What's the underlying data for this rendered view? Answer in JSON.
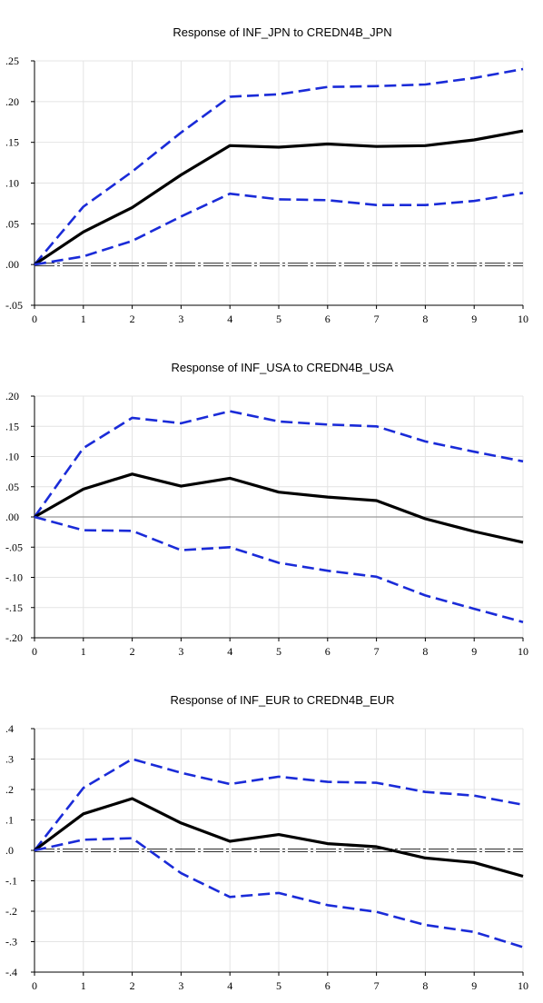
{
  "chart_data": [
    {
      "type": "line",
      "title": "Response of INF_JPN to CREDN4B_JPN",
      "x": [
        0,
        1,
        2,
        3,
        4,
        5,
        6,
        7,
        8,
        9,
        10
      ],
      "ylim": [
        -0.05,
        0.25
      ],
      "yticks": [
        -0.05,
        0.0,
        0.05,
        0.1,
        0.15,
        0.2,
        0.25
      ],
      "ytick_labels": [
        "-.05",
        ".00",
        ".05",
        ".10",
        ".15",
        ".20",
        ".25"
      ],
      "baseline": "double-dashed",
      "series": [
        {
          "role": "upper",
          "color": "#1a2bd8",
          "style": "dashed",
          "values": [
            0.0,
            0.071,
            0.114,
            0.162,
            0.206,
            0.209,
            0.218,
            0.219,
            0.221,
            0.229,
            0.24
          ]
        },
        {
          "role": "response",
          "color": "#000000",
          "style": "solid",
          "values": [
            0.0,
            0.04,
            0.07,
            0.11,
            0.146,
            0.144,
            0.148,
            0.145,
            0.146,
            0.153,
            0.164
          ]
        },
        {
          "role": "lower",
          "color": "#1a2bd8",
          "style": "dashed",
          "values": [
            0.0,
            0.01,
            0.029,
            0.059,
            0.087,
            0.08,
            0.079,
            0.073,
            0.073,
            0.078,
            0.088
          ]
        }
      ]
    },
    {
      "type": "line",
      "title": "Response of INF_USA to CREDN4B_USA",
      "x": [
        0,
        1,
        2,
        3,
        4,
        5,
        6,
        7,
        8,
        9,
        10
      ],
      "ylim": [
        -0.2,
        0.2
      ],
      "yticks": [
        -0.2,
        -0.15,
        -0.1,
        -0.05,
        0.0,
        0.05,
        0.1,
        0.15,
        0.2
      ],
      "ytick_labels": [
        "-.20",
        "-.15",
        "-.10",
        "-.05",
        ".00",
        ".05",
        ".10",
        ".15",
        ".20"
      ],
      "baseline": "single",
      "series": [
        {
          "role": "upper",
          "color": "#1a2bd8",
          "style": "dashed",
          "values": [
            0.0,
            0.114,
            0.164,
            0.155,
            0.175,
            0.158,
            0.153,
            0.15,
            0.125,
            0.108,
            0.092
          ]
        },
        {
          "role": "response",
          "color": "#000000",
          "style": "solid",
          "values": [
            0.0,
            0.046,
            0.071,
            0.051,
            0.064,
            0.041,
            0.033,
            0.027,
            -0.003,
            -0.024,
            -0.042
          ]
        },
        {
          "role": "lower",
          "color": "#1a2bd8",
          "style": "dashed",
          "values": [
            0.0,
            -0.022,
            -0.023,
            -0.055,
            -0.05,
            -0.076,
            -0.089,
            -0.099,
            -0.13,
            -0.152,
            -0.174
          ]
        }
      ]
    },
    {
      "type": "line",
      "title": "Response of INF_EUR to CREDN4B_EUR",
      "x": [
        0,
        1,
        2,
        3,
        4,
        5,
        6,
        7,
        8,
        9,
        10
      ],
      "ylim": [
        -0.4,
        0.4
      ],
      "yticks": [
        -0.4,
        -0.3,
        -0.2,
        -0.1,
        0.0,
        0.1,
        0.2,
        0.3,
        0.4
      ],
      "ytick_labels": [
        "-.4",
        "-.3",
        "-.2",
        "-.1",
        ".0",
        ".1",
        ".2",
        ".3",
        ".4"
      ],
      "baseline": "double-dashed",
      "series": [
        {
          "role": "upper",
          "color": "#1a2bd8",
          "style": "dashed",
          "values": [
            0.0,
            0.205,
            0.3,
            0.255,
            0.218,
            0.242,
            0.225,
            0.222,
            0.192,
            0.18,
            0.15
          ]
        },
        {
          "role": "response",
          "color": "#000000",
          "style": "solid",
          "values": [
            0.0,
            0.12,
            0.17,
            0.09,
            0.03,
            0.052,
            0.022,
            0.012,
            -0.025,
            -0.04,
            -0.085
          ]
        },
        {
          "role": "lower",
          "color": "#1a2bd8",
          "style": "dashed",
          "values": [
            0.0,
            0.035,
            0.04,
            -0.075,
            -0.153,
            -0.14,
            -0.18,
            -0.202,
            -0.245,
            -0.268,
            -0.318
          ]
        }
      ]
    }
  ]
}
